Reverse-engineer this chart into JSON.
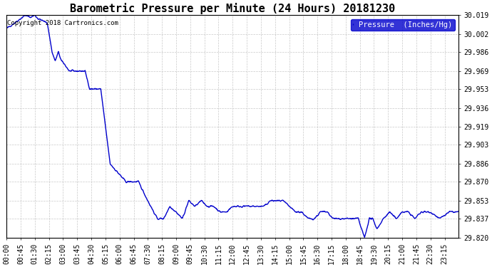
{
  "title": "Barometric Pressure per Minute (24 Hours) 20181230",
  "copyright_text": "Copyright 2018 Cartronics.com",
  "legend_label": "Pressure  (Inches/Hg)",
  "line_color": "#0000CC",
  "legend_bg": "#0000CC",
  "legend_text_color": "#FFFFFF",
  "background_color": "#FFFFFF",
  "grid_color": "#BBBBBB",
  "ylim": [
    29.82,
    30.019
  ],
  "yticks": [
    29.82,
    29.837,
    29.853,
    29.87,
    29.886,
    29.903,
    29.919,
    29.936,
    29.953,
    29.969,
    29.986,
    30.002,
    30.019
  ],
  "xtick_labels": [
    "00:00",
    "00:45",
    "01:30",
    "02:15",
    "03:00",
    "03:45",
    "04:30",
    "05:15",
    "06:00",
    "06:45",
    "07:30",
    "08:15",
    "09:00",
    "09:45",
    "10:30",
    "11:15",
    "12:00",
    "12:45",
    "13:30",
    "14:15",
    "15:00",
    "15:45",
    "16:30",
    "17:15",
    "18:00",
    "18:45",
    "19:30",
    "20:15",
    "21:00",
    "21:45",
    "22:30",
    "23:15"
  ],
  "title_fontsize": 11,
  "tick_fontsize": 7,
  "copyright_fontsize": 6.5,
  "legend_fontsize": 7.5,
  "line_width": 1.0,
  "figsize": [
    6.9,
    3.75
  ],
  "dpi": 100,
  "waypoints": [
    [
      0,
      30.007
    ],
    [
      15,
      30.01
    ],
    [
      45,
      30.016
    ],
    [
      60,
      30.019
    ],
    [
      75,
      30.017
    ],
    [
      90,
      30.019
    ],
    [
      100,
      30.016
    ],
    [
      115,
      30.014
    ],
    [
      130,
      30.012
    ],
    [
      145,
      29.986
    ],
    [
      155,
      29.978
    ],
    [
      165,
      29.986
    ],
    [
      175,
      29.978
    ],
    [
      185,
      29.975
    ],
    [
      200,
      29.969
    ],
    [
      215,
      29.969
    ],
    [
      230,
      29.969
    ],
    [
      250,
      29.969
    ],
    [
      265,
      29.953
    ],
    [
      280,
      29.953
    ],
    [
      300,
      29.953
    ],
    [
      330,
      29.886
    ],
    [
      380,
      29.87
    ],
    [
      420,
      29.87
    ],
    [
      450,
      29.853
    ],
    [
      480,
      29.837
    ],
    [
      500,
      29.837
    ],
    [
      520,
      29.848
    ],
    [
      540,
      29.843
    ],
    [
      560,
      29.837
    ],
    [
      580,
      29.853
    ],
    [
      600,
      29.848
    ],
    [
      620,
      29.853
    ],
    [
      640,
      29.848
    ],
    [
      660,
      29.848
    ],
    [
      680,
      29.843
    ],
    [
      700,
      29.843
    ],
    [
      720,
      29.848
    ],
    [
      740,
      29.848
    ],
    [
      760,
      29.848
    ],
    [
      780,
      29.848
    ],
    [
      800,
      29.848
    ],
    [
      820,
      29.848
    ],
    [
      840,
      29.853
    ],
    [
      860,
      29.853
    ],
    [
      880,
      29.853
    ],
    [
      900,
      29.848
    ],
    [
      920,
      29.843
    ],
    [
      940,
      29.843
    ],
    [
      960,
      29.837
    ],
    [
      980,
      29.837
    ],
    [
      1000,
      29.843
    ],
    [
      1020,
      29.843
    ],
    [
      1040,
      29.837
    ],
    [
      1060,
      29.837
    ],
    [
      1080,
      29.837
    ],
    [
      1100,
      29.837
    ],
    [
      1120,
      29.837
    ],
    [
      1130,
      29.828
    ],
    [
      1140,
      29.82
    ],
    [
      1155,
      29.837
    ],
    [
      1165,
      29.837
    ],
    [
      1180,
      29.828
    ],
    [
      1200,
      29.837
    ],
    [
      1220,
      29.843
    ],
    [
      1240,
      29.837
    ],
    [
      1260,
      29.843
    ],
    [
      1280,
      29.843
    ],
    [
      1300,
      29.837
    ],
    [
      1320,
      29.843
    ],
    [
      1350,
      29.843
    ],
    [
      1380,
      29.837
    ],
    [
      1410,
      29.843
    ],
    [
      1439,
      29.843
    ]
  ]
}
